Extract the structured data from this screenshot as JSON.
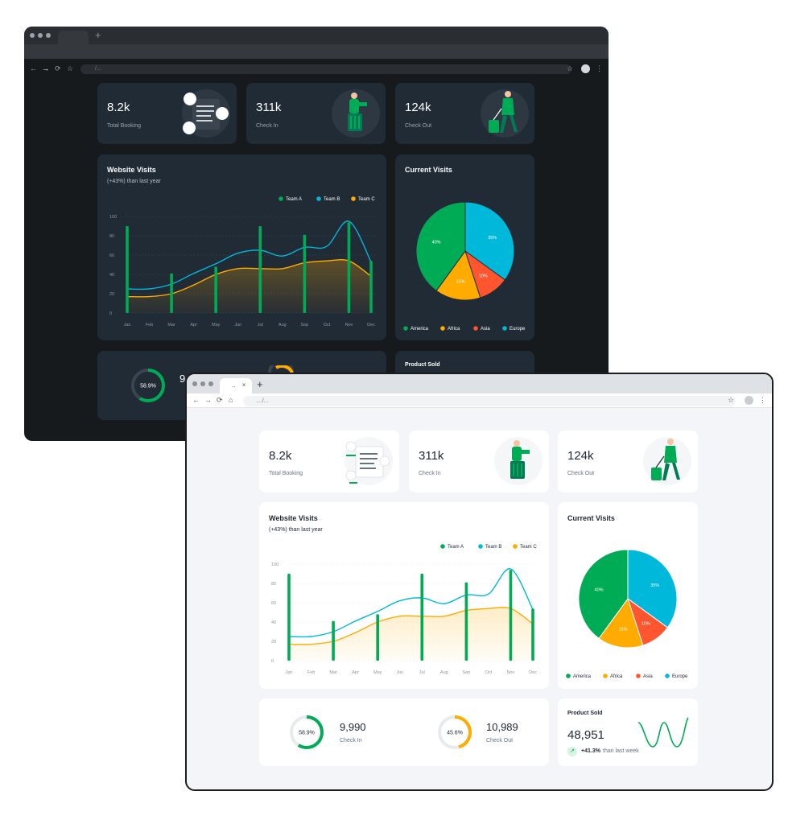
{
  "colors": {
    "green": "#00ab55",
    "cyan": "#00b8d9",
    "yellow": "#ffab00",
    "red": "#ff5630",
    "dark_bg": "#171a1d",
    "dark_card": "#212b36",
    "light_bg": "#f4f5f8",
    "light_card": "#ffffff"
  },
  "browser": {
    "address_dark": "/...",
    "address_light": "..../...",
    "tab_label_light": "..",
    "close_glyph": "×",
    "new_tab_glyph": "+",
    "icons": [
      "back-icon",
      "forward-icon",
      "reload-icon",
      "home-icon",
      "lock-icon",
      "star-icon",
      "menu-icon"
    ]
  },
  "stats": [
    {
      "value": "8.2k",
      "label": "Total Booking",
      "icon": "booking-illustration"
    },
    {
      "value": "311k",
      "label": "Check In",
      "icon": "check-in-illustration"
    },
    {
      "value": "124k",
      "label": "Check Out",
      "icon": "check-out-illustration"
    }
  ],
  "website_visits": {
    "title": "Website Visits",
    "subtitle": "(+43%) than last year"
  },
  "current_visits": {
    "title": "Current Visits"
  },
  "checkin_summary": {
    "check_in": {
      "percent": "58.9%",
      "value": "9,990",
      "label": "Check In",
      "fraction": 0.589
    },
    "check_out": {
      "percent": "45.6%",
      "value": "10,989",
      "label": "Check Out",
      "fraction": 0.456
    }
  },
  "product_sold": {
    "title": "Product Sold",
    "value": "48,951",
    "change": "+41.3%",
    "change_suffix": "than last week",
    "trend_icon": "trending-up-icon"
  },
  "chart_data": [
    {
      "type": "bar",
      "title": "Website Visits",
      "categories": [
        "Jan",
        "Feb",
        "Mar",
        "Apr",
        "May",
        "Jun",
        "Jul",
        "Aug",
        "Sep",
        "Oct",
        "Nov",
        "Dec"
      ],
      "ylim": [
        0,
        100
      ],
      "yticks": [
        0,
        20,
        40,
        60,
        80,
        100
      ],
      "grid": true,
      "legend": "top-right",
      "series": [
        {
          "name": "Team A",
          "type": "bar",
          "color": "#00ab55",
          "values": [
            90,
            0,
            41,
            0,
            48,
            0,
            90,
            0,
            81,
            0,
            94,
            54
          ]
        },
        {
          "name": "Team B",
          "type": "line",
          "color": "#00b8d9",
          "values": [
            25,
            25,
            30,
            41,
            51,
            62,
            65,
            59,
            68,
            69,
            95,
            53
          ]
        },
        {
          "name": "Team C",
          "type": "area",
          "color": "#ffab00",
          "values": [
            17,
            17,
            20,
            29,
            40,
            46,
            46,
            46,
            52,
            54,
            54,
            38
          ]
        }
      ]
    },
    {
      "type": "pie",
      "title": "Current Visits",
      "legend": "bottom",
      "slices": [
        {
          "name": "America",
          "value": 40,
          "label": "40%",
          "color": "#00ab55"
        },
        {
          "name": "Africa",
          "value": 15,
          "label": "15%",
          "color": "#ffab00"
        },
        {
          "name": "Asia",
          "value": 10,
          "label": "10%",
          "color": "#ff5630"
        },
        {
          "name": "Europe",
          "value": 35,
          "label": "35%",
          "color": "#00b8d9"
        }
      ]
    }
  ]
}
